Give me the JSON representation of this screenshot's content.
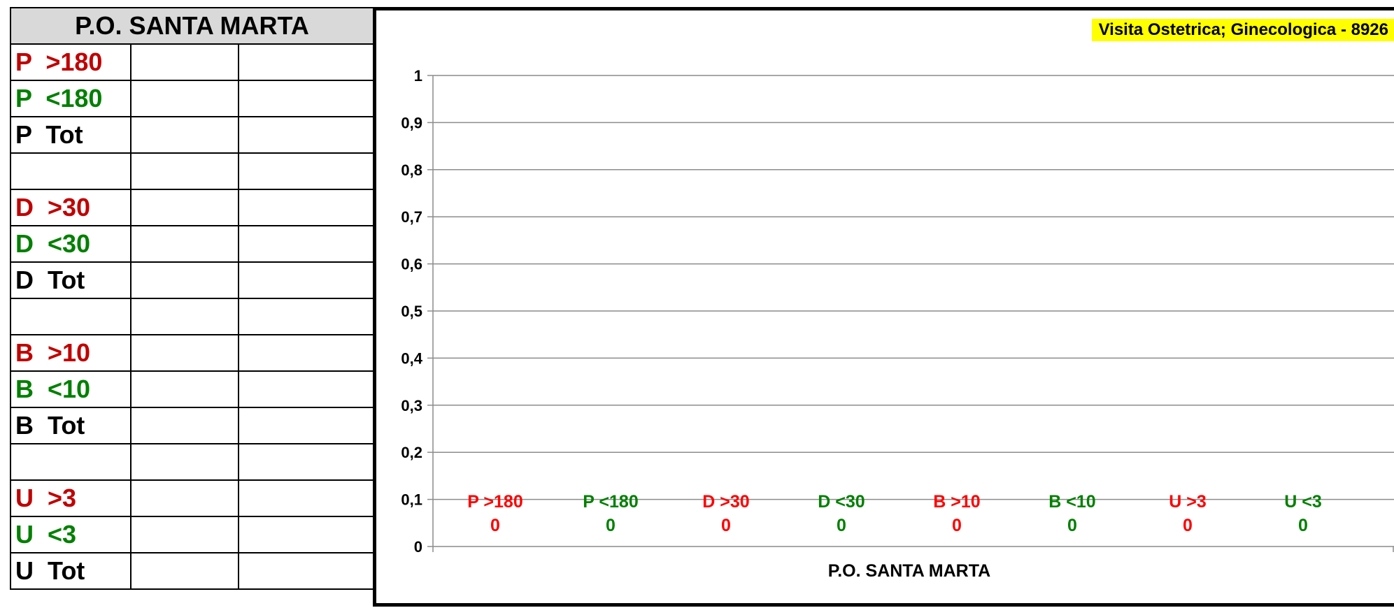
{
  "table": {
    "title": "P.O. SANTA MARTA",
    "rows": [
      {
        "label": "P  >180",
        "color": "#c00000"
      },
      {
        "label": "P  <180",
        "color": "#008000"
      },
      {
        "label": "P  Tot",
        "color": "#000000"
      },
      {
        "label": "",
        "color": "#000000"
      },
      {
        "label": "D  >30",
        "color": "#c00000"
      },
      {
        "label": "D  <30",
        "color": "#008000"
      },
      {
        "label": "D  Tot",
        "color": "#000000"
      },
      {
        "label": "",
        "color": "#000000"
      },
      {
        "label": "B  >10",
        "color": "#c00000"
      },
      {
        "label": "B  <10",
        "color": "#008000"
      },
      {
        "label": "B  Tot",
        "color": "#000000"
      },
      {
        "label": "",
        "color": "#000000"
      },
      {
        "label": "U  >3",
        "color": "#c00000"
      },
      {
        "label": "U  <3",
        "color": "#008000"
      },
      {
        "label": "U  Tot",
        "color": "#000000"
      }
    ]
  },
  "chart_data": {
    "type": "bar",
    "title": "Visita Ostetrica; Ginecologica - 8926",
    "xlabel": "P.O. SANTA MARTA",
    "ylabel": "",
    "ylim": [
      0,
      1
    ],
    "yticks": [
      "0",
      "0,1",
      "0,2",
      "0,3",
      "0,4",
      "0,5",
      "0,6",
      "0,7",
      "0,8",
      "0,9",
      "1"
    ],
    "grid": true,
    "legend": "none",
    "categories": [
      "P  >180",
      "P  <180",
      "D  >30",
      "D  <30",
      "B  >10",
      "B  <10",
      "U  >3",
      "U  <3"
    ],
    "values": [
      0,
      0,
      0,
      0,
      0,
      0,
      0,
      0
    ],
    "value_labels": [
      "0",
      "0",
      "0",
      "0",
      "0",
      "0",
      "0",
      "0"
    ],
    "colors": [
      "#ff0000",
      "#008000",
      "#ff0000",
      "#008000",
      "#ff0000",
      "#008000",
      "#ff0000",
      "#008000"
    ]
  }
}
